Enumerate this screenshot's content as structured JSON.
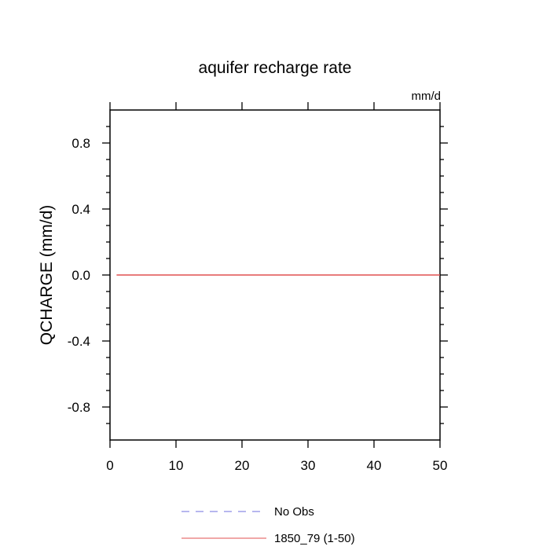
{
  "chart_data": {
    "type": "line",
    "title": "aquifer recharge rate",
    "units_label": "mm/d",
    "ylabel": "QCHARGE  (mm/d)",
    "xlabel": "",
    "xlim": [
      0,
      50
    ],
    "ylim": [
      -1,
      1
    ],
    "x_ticks": [
      0,
      10,
      20,
      30,
      40,
      50
    ],
    "x_tick_labels": [
      "0",
      "10",
      "20",
      "30",
      "40",
      "50"
    ],
    "y_ticks": [
      -0.8,
      -0.4,
      0.0,
      0.4,
      0.8
    ],
    "y_tick_labels": [
      "-0.8",
      "-0.4",
      "0.0",
      "0.4",
      "0.8"
    ],
    "grid": false,
    "legend_position": "bottom",
    "series": [
      {
        "name": "No Obs",
        "color": "#6f6fdf",
        "dash": "dashed",
        "x": [],
        "y": []
      },
      {
        "name": "1850_79 (1-50)",
        "color": "#e05050",
        "dash": "solid",
        "x": [
          1,
          50
        ],
        "y": [
          0,
          0
        ]
      }
    ]
  }
}
